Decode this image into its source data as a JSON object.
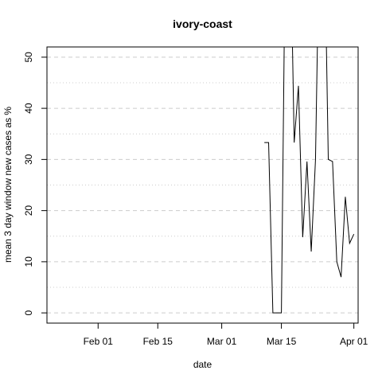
{
  "chart_data": {
    "type": "line",
    "title": "ivory-coast",
    "xlabel": "date",
    "ylabel": "mean  3  day window new cases as %",
    "xlim": [
      "2020-01-20",
      "2020-04-02"
    ],
    "ylim": [
      -2,
      52
    ],
    "x_ticks": [
      {
        "date": "2020-02-01",
        "label": "Feb 01"
      },
      {
        "date": "2020-02-15",
        "label": "Feb 15"
      },
      {
        "date": "2020-03-01",
        "label": "Mar 01"
      },
      {
        "date": "2020-03-15",
        "label": "Mar 15"
      },
      {
        "date": "2020-04-01",
        "label": "Apr 01"
      }
    ],
    "y_ticks": [
      0,
      10,
      20,
      30,
      40,
      50
    ],
    "y_gridlines_major": [
      0,
      10,
      20,
      30,
      40,
      50
    ],
    "y_gridlines_minor": [
      5,
      15,
      25,
      35,
      45
    ],
    "grid": true,
    "series": [
      {
        "color": "#000000",
        "points": [
          {
            "x": "2020-03-11",
            "y": 33.3
          },
          {
            "x": "2020-03-12",
            "y": 33.3
          },
          {
            "x": "2020-03-13",
            "y": 0
          },
          {
            "x": "2020-03-14",
            "y": 0
          },
          {
            "x": "2020-03-15",
            "y": 0
          },
          {
            "x": "2020-03-16",
            "y": 80
          },
          {
            "x": "2020-03-17",
            "y": 80
          },
          {
            "x": "2020-03-18",
            "y": 33.3
          },
          {
            "x": "2020-03-19",
            "y": 44.4
          },
          {
            "x": "2020-03-20",
            "y": 14.8
          },
          {
            "x": "2020-03-21",
            "y": 29.6
          },
          {
            "x": "2020-03-22",
            "y": 12
          },
          {
            "x": "2020-03-23",
            "y": 30
          },
          {
            "x": "2020-03-24",
            "y": 80
          },
          {
            "x": "2020-03-25",
            "y": 80
          },
          {
            "x": "2020-03-26",
            "y": 30
          },
          {
            "x": "2020-03-27",
            "y": 29.6
          },
          {
            "x": "2020-03-28",
            "y": 10
          },
          {
            "x": "2020-03-29",
            "y": 7
          },
          {
            "x": "2020-03-30",
            "y": 22.7
          },
          {
            "x": "2020-03-31",
            "y": 13.6
          },
          {
            "x": "2020-04-01",
            "y": 15.4
          }
        ]
      }
    ]
  }
}
